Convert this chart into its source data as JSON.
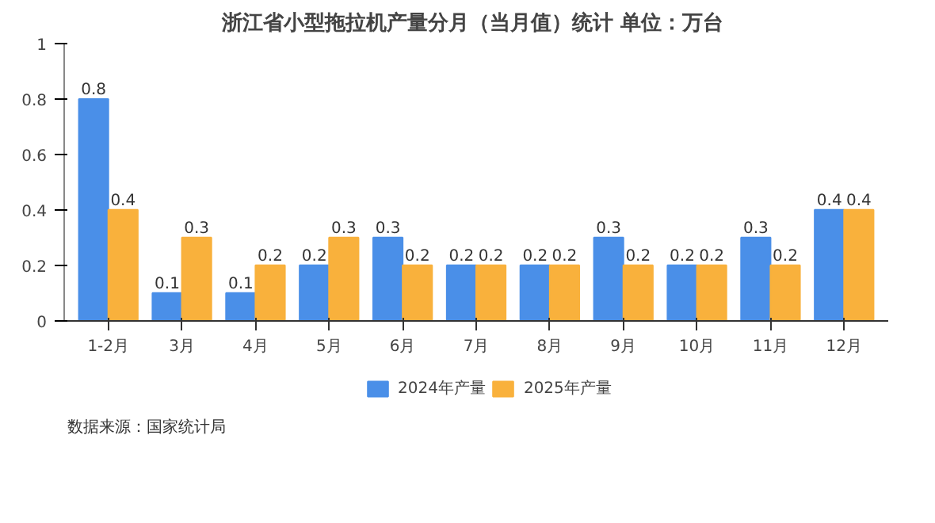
{
  "chart_data": {
    "type": "bar",
    "title": "浙江省小型拖拉机产量分月（当月值）统计  单位：万台",
    "categories": [
      "1-2月",
      "3月",
      "4月",
      "5月",
      "6月",
      "7月",
      "8月",
      "9月",
      "10月",
      "11月",
      "12月"
    ],
    "series": [
      {
        "name": "2024年产量",
        "color": "#4a8fe8",
        "values": [
          0.8,
          0.1,
          0.1,
          0.2,
          0.3,
          0.2,
          0.2,
          0.3,
          0.2,
          0.3,
          0.4
        ]
      },
      {
        "name": "2025年产量",
        "color": "#f9b13c",
        "values": [
          0.4,
          0.3,
          0.2,
          0.3,
          0.2,
          0.2,
          0.2,
          0.2,
          0.2,
          0.2,
          0.4
        ]
      }
    ],
    "ylim": [
      0,
      1
    ],
    "yticks": [
      0,
      0.2,
      0.4,
      0.6,
      0.8,
      1
    ],
    "grid": false,
    "legend": "bottom",
    "data_labels": true,
    "annotations": [
      "数据来源：国家统计局"
    ]
  }
}
